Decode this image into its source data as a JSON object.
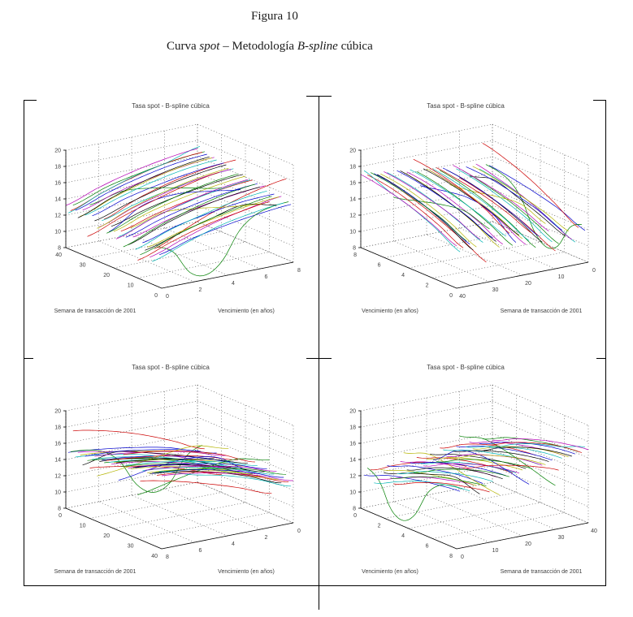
{
  "document": {
    "figure_label": "Figura 10",
    "figure_caption_parts": [
      {
        "text": "Curva ",
        "italic": false
      },
      {
        "text": "spot",
        "italic": true
      },
      {
        "text": " – Metodología ",
        "italic": false
      },
      {
        "text": "B-spline",
        "italic": true
      },
      {
        "text": " cúbica",
        "italic": false
      }
    ]
  },
  "chart_data": {
    "type": "3d-line",
    "panel_title": "Tasa spot - B-spline cúbica",
    "z_axis": {
      "range": [
        8,
        20
      ],
      "ticks": [
        8,
        10,
        12,
        14,
        16,
        18,
        20
      ]
    },
    "week_axis": {
      "label": "Semana de transacción de 2001",
      "range": [
        0,
        40
      ],
      "ticks": [
        0,
        10,
        20,
        30,
        40
      ]
    },
    "maturity_axis": {
      "label": "Vencimiento (en años)",
      "range": [
        0,
        8
      ],
      "ticks": [
        0,
        2,
        4,
        6,
        8
      ]
    },
    "grid": "dashed",
    "colors": [
      "#0000cc",
      "#007f00",
      "#cc0000",
      "#00b4b4",
      "#b400b4",
      "#b4b400",
      "#000000"
    ],
    "maturities": [
      0,
      2,
      4,
      6,
      8
    ],
    "maturities_fine": [
      0,
      1,
      2,
      3,
      4,
      5,
      6,
      7,
      8
    ],
    "series": [
      [
        12.0,
        13.2,
        14.0,
        14.6,
        15.0
      ],
      [
        12.8,
        11.8,
        8.9,
        8.2,
        9.6,
        12.8,
        14.4,
        15.0,
        15.2
      ],
      [
        12.5,
        14.3,
        15.9,
        17.1,
        17.9
      ],
      [
        10.8,
        12.2,
        13.5,
        14.3,
        14.8
      ],
      [
        11.2,
        12.6,
        13.9,
        14.8,
        15.5
      ],
      [
        12.3,
        13.4,
        14.2,
        14.9,
        15.3
      ],
      [
        11.8,
        13.0,
        14.1,
        15.0,
        14.2
      ],
      [
        12.6,
        13.8,
        14.6,
        15.2,
        15.4
      ],
      [
        11.0,
        12.4,
        13.6,
        14.4,
        15.0
      ],
      [
        10.2,
        11.6,
        12.8,
        13.6,
        14.2
      ],
      [
        11.4,
        12.9,
        14.0,
        14.9,
        15.4
      ],
      [
        12.8,
        14.0,
        14.9,
        15.5,
        15.9
      ],
      [
        13.8,
        14.9,
        14.6,
        14.0,
        13.6
      ],
      [
        11.6,
        13.1,
        14.3,
        15.1,
        15.5
      ],
      [
        12.4,
        13.7,
        14.7,
        15.4,
        15.8
      ],
      [
        11.1,
        12.7,
        14.0,
        15.0,
        15.6
      ],
      [
        12.9,
        14.1,
        15.0,
        15.6,
        16.0
      ],
      [
        12.1,
        13.5,
        14.6,
        15.4,
        15.9
      ],
      [
        11.7,
        13.2,
        14.4,
        15.3,
        15.8
      ],
      [
        12.5,
        13.9,
        14.9,
        15.6,
        16.1
      ],
      [
        13.0,
        14.2,
        15.1,
        15.8,
        16.2
      ],
      [
        12.2,
        14.6,
        15.2,
        14.8,
        14.2
      ],
      [
        11.9,
        13.4,
        14.6,
        15.5,
        16.0
      ],
      [
        13.5,
        15.2,
        16.4,
        17.2,
        17.6
      ],
      [
        13.2,
        14.4,
        15.3,
        16.0,
        16.4
      ],
      [
        12.3,
        13.8,
        14.9,
        15.8,
        16.2
      ],
      [
        12.0,
        13.6,
        14.8,
        15.7,
        16.2
      ],
      [
        12.8,
        14.1,
        15.2,
        16.0,
        16.5
      ],
      [
        13.3,
        14.6,
        15.5,
        16.2,
        16.6
      ],
      [
        14.5,
        15.4,
        15.0,
        14.2,
        13.4
      ],
      [
        10.5,
        12.0,
        13.3,
        14.4,
        15.2
      ],
      [
        13.0,
        14.3,
        15.4,
        16.2,
        16.6
      ],
      [
        13.5,
        14.8,
        15.7,
        16.4,
        16.8
      ],
      [
        12.6,
        14.1,
        15.3,
        16.2,
        16.6
      ],
      [
        12.3,
        13.9,
        15.2,
        16.1,
        16.6
      ],
      [
        13.1,
        14.5,
        15.6,
        16.4,
        16.8
      ],
      [
        13.6,
        15.0,
        15.9,
        16.6,
        17.0
      ],
      [
        12.8,
        14.3,
        15.5,
        16.4,
        16.8
      ],
      [
        12.4,
        14.0,
        15.3,
        16.2,
        17.4
      ],
      [
        13.2,
        14.6,
        15.7,
        16.5,
        17.0
      ]
    ],
    "panels": [
      {
        "left_label": "Semana de transacción de 2001",
        "right_label": "Vencimiento (en años)",
        "left_ticks": [
          "40",
          "30",
          "20",
          "10",
          "0"
        ],
        "right_ticks": [
          "0",
          "2",
          "4",
          "6",
          "8"
        ],
        "u": "m",
        "u_rev": false,
        "v": "w",
        "v_rev": false
      },
      {
        "left_label": "Vencimiento (en años)",
        "right_label": "Semana de transacción de 2001",
        "left_ticks": [
          "8",
          "6",
          "4",
          "2",
          "0"
        ],
        "right_ticks": [
          "40",
          "30",
          "20",
          "10",
          "0"
        ],
        "u": "w",
        "u_rev": true,
        "v": "m",
        "v_rev": false
      },
      {
        "left_label": "Semana de transacción de 2001",
        "right_label": "Vencimiento (en años)",
        "left_ticks": [
          "0",
          "10",
          "20",
          "30",
          "40"
        ],
        "right_ticks": [
          "8",
          "6",
          "4",
          "2",
          "0"
        ],
        "u": "m",
        "u_rev": true,
        "v": "w",
        "v_rev": true
      },
      {
        "left_label": "Vencimiento (en años)",
        "right_label": "Semana de transacción de 2001",
        "left_ticks": [
          "0",
          "2",
          "4",
          "6",
          "8"
        ],
        "right_ticks": [
          "0",
          "10",
          "20",
          "30",
          "40"
        ],
        "u": "w",
        "u_rev": false,
        "v": "m",
        "v_rev": true
      }
    ]
  }
}
